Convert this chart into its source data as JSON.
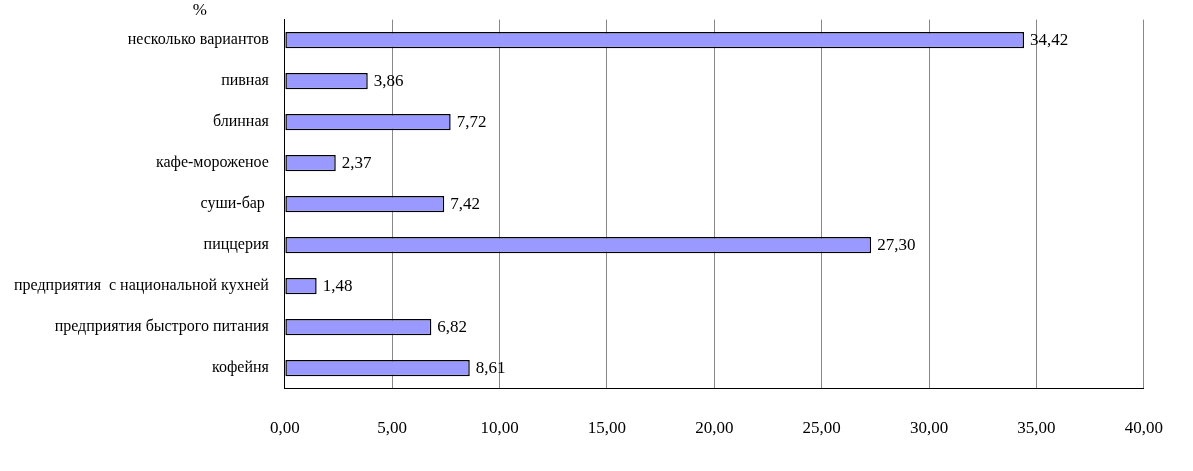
{
  "chart_data": {
    "type": "bar",
    "orientation": "horizontal",
    "categories": [
      "несколько вариантов",
      "пивная",
      "блинная",
      "кафе-мороженое",
      "суши-бар ",
      "пиццерия",
      "предприятия  с национальной кухней",
      "предприятия быстрого питания",
      "кофейня"
    ],
    "values": [
      34.42,
      3.86,
      7.72,
      2.37,
      7.42,
      27.3,
      1.48,
      6.82,
      8.61
    ],
    "value_labels": [
      "34,42",
      "3,86",
      "7,72",
      "2,37",
      "7,42",
      "27,30",
      "1,48",
      "6,82",
      "8,61"
    ],
    "color": "#9999ff",
    "xlim": [
      0,
      40
    ],
    "xticks": [
      {
        "value": 0,
        "label": "0,00"
      },
      {
        "value": 5,
        "label": "5,00"
      },
      {
        "value": 10,
        "label": "10,00"
      },
      {
        "value": 15,
        "label": "15,00"
      },
      {
        "value": 20,
        "label": "20,00"
      },
      {
        "value": 25,
        "label": "25,00"
      },
      {
        "value": 30,
        "label": "30,00"
      },
      {
        "value": 35,
        "label": "35,00"
      },
      {
        "value": 40,
        "label": "40,00"
      }
    ],
    "grid": "x",
    "legend": false,
    "annotations": [
      "%"
    ]
  }
}
